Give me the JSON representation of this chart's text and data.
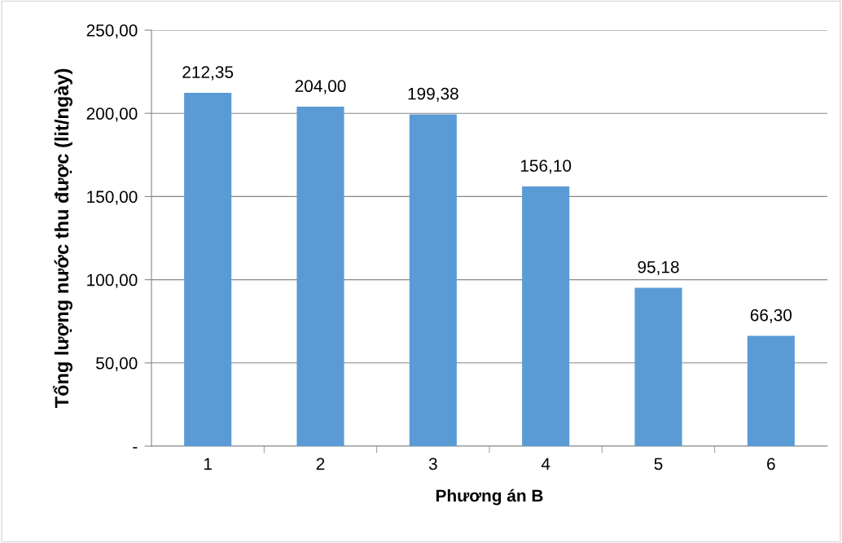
{
  "chart_data": {
    "type": "bar",
    "xlabel": "Phương án B",
    "ylabel": "Tổng lượng nước thu được (lit/ngày)",
    "categories": [
      "1",
      "2",
      "3",
      "4",
      "5",
      "6"
    ],
    "values": [
      212.35,
      204.0,
      199.38,
      156.1,
      95.18,
      66.3
    ],
    "value_labels": [
      "212,35",
      "204,00",
      "199,38",
      "156,10",
      "95,18",
      "66,30"
    ],
    "color": "#5b9bd5",
    "ylim": [
      0,
      250
    ],
    "yticks": [
      {
        "value": 0,
        "label": "-"
      },
      {
        "value": 50,
        "label": "50,00"
      },
      {
        "value": 100,
        "label": "100,00"
      },
      {
        "value": 150,
        "label": "150,00"
      },
      {
        "value": 200,
        "label": "200,00"
      },
      {
        "value": 250,
        "label": "250,00"
      }
    ],
    "grid": "y",
    "legend": false
  }
}
